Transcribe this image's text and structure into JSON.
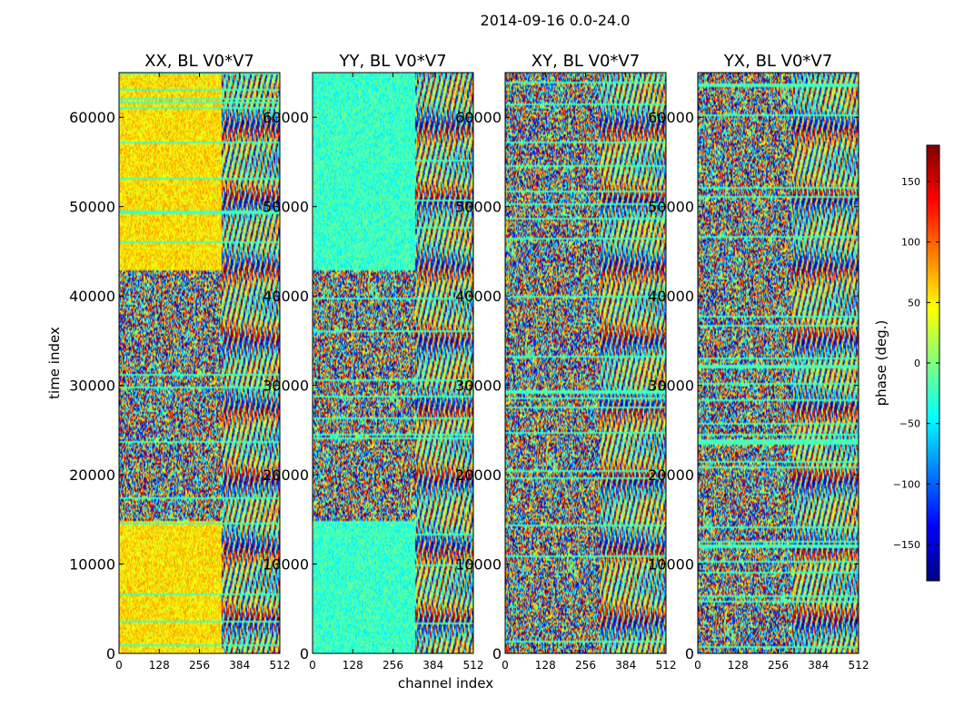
{
  "figure_title": "2014-09-16 0.0-24.0",
  "colors": {
    "jet_stops": [
      "#00007f",
      "#0000ff",
      "#007fff",
      "#00ffff",
      "#7fff7f",
      "#ffff00",
      "#ff7f00",
      "#ff0000",
      "#7f0000"
    ]
  },
  "chart_data": [
    {
      "type": "heatmap",
      "title": "XX, BL V0*V7",
      "xlabel": "",
      "ylabel": "time index",
      "xlim": [
        0,
        512
      ],
      "ylim": [
        0,
        65000
      ],
      "xticks": [
        0,
        128,
        256,
        384,
        512
      ],
      "xtick_labels": [
        "0",
        "128",
        "256",
        "384",
        "512"
      ],
      "yticks": [
        0,
        10000,
        20000,
        30000,
        40000,
        50000,
        60000
      ],
      "ytick_labels": [
        "0",
        "10000",
        "20000",
        "30000",
        "40000",
        "50000",
        "60000"
      ],
      "pattern": {
        "base_phase": 55,
        "fringe_from_channel": 325,
        "flagged_band_time": [
          15000,
          43000
        ]
      }
    },
    {
      "type": "heatmap",
      "title": "YY, BL V0*V7",
      "xlabel": "channel index",
      "ylabel": "",
      "xlim": [
        0,
        512
      ],
      "ylim": [
        0,
        65000
      ],
      "xticks": [
        0,
        128,
        256,
        384,
        512
      ],
      "xtick_labels": [
        "0",
        "128",
        "256",
        "384",
        "512"
      ],
      "yticks": [
        0,
        10000,
        20000,
        30000,
        40000,
        50000,
        60000
      ],
      "ytick_labels": [
        "0",
        "10000",
        "20000",
        "30000",
        "40000",
        "50000",
        "60000"
      ],
      "pattern": {
        "base_phase": -25,
        "fringe_from_channel": 325,
        "flagged_band_time": [
          15000,
          43000
        ]
      }
    },
    {
      "type": "heatmap",
      "title": "XY, BL V0*V7",
      "xlabel": "",
      "ylabel": "",
      "xlim": [
        0,
        512
      ],
      "ylim": [
        0,
        65000
      ],
      "xticks": [
        0,
        128,
        256,
        384,
        512
      ],
      "xtick_labels": [
        "0",
        "128",
        "256",
        "384",
        "512"
      ],
      "yticks": [
        0,
        10000,
        20000,
        30000,
        40000,
        50000,
        60000
      ],
      "ytick_labels": [
        "0",
        "10000",
        "20000",
        "30000",
        "40000",
        "50000",
        "60000"
      ],
      "pattern": {
        "base_phase": null,
        "fringe_from_channel": 300,
        "flagged_band_time": []
      }
    },
    {
      "type": "heatmap",
      "title": "YX, BL V0*V7",
      "xlabel": "",
      "ylabel": "",
      "xlim": [
        0,
        512
      ],
      "ylim": [
        0,
        65000
      ],
      "xticks": [
        0,
        128,
        256,
        384,
        512
      ],
      "xtick_labels": [
        "0",
        "128",
        "256",
        "384",
        "512"
      ],
      "yticks": [
        0,
        10000,
        20000,
        30000,
        40000,
        50000,
        60000
      ],
      "ytick_labels": [
        "0",
        "10000",
        "20000",
        "30000",
        "40000",
        "50000",
        "60000"
      ],
      "pattern": {
        "base_phase": null,
        "fringe_from_channel": 300,
        "flagged_band_time": []
      }
    }
  ],
  "colorbar": {
    "label": "phase (deg.)",
    "range": [
      -180,
      180
    ],
    "ticks": [
      -150,
      -100,
      -50,
      0,
      50,
      100,
      150
    ],
    "tick_labels": [
      "−150",
      "−100",
      "−50",
      "0",
      "50",
      "100",
      "150"
    ]
  }
}
